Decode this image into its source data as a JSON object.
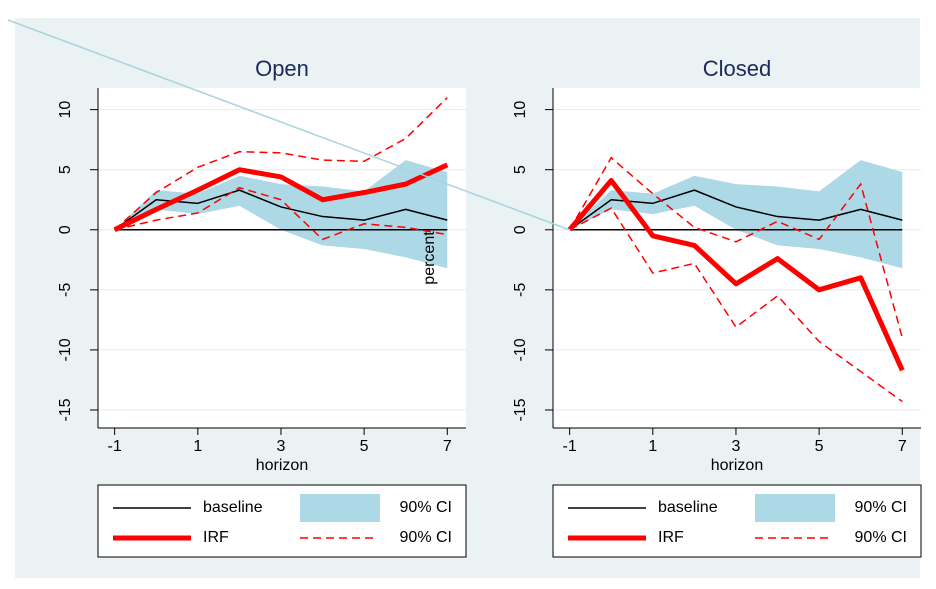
{
  "chart_data": [
    {
      "type": "line",
      "title": "Open",
      "x_label": "horizon",
      "annotation": "percent",
      "x": [
        -1,
        0,
        1,
        2,
        3,
        4,
        5,
        6,
        7
      ],
      "xlim": [
        -1.4,
        7.45
      ],
      "xticks": [
        -1,
        1,
        3,
        5,
        7
      ],
      "ylim": [
        -16.5,
        11.8
      ],
      "yticks": [
        -15,
        -10,
        -5,
        0,
        5,
        10
      ],
      "grid": true,
      "zero_line": true,
      "series": [
        {
          "name": "baseline",
          "color": "#000000",
          "style": "line",
          "values": [
            0,
            2.5,
            2.2,
            3.3,
            1.9,
            1.1,
            0.8,
            1.7,
            0.8
          ]
        },
        {
          "name": "90% CI",
          "color": "#add8e6",
          "style": "band",
          "lower": [
            0,
            1.7,
            1.3,
            2.0,
            0,
            -1.3,
            -1.6,
            -2.3,
            -3.2
          ],
          "upper": [
            0,
            3.3,
            3.0,
            4.5,
            3.8,
            3.6,
            3.2,
            5.8,
            4.8
          ]
        },
        {
          "name": "IRF",
          "color": "#ff0000",
          "style": "thick",
          "values": [
            0,
            1.7,
            3.3,
            5.0,
            4.4,
            2.5,
            3.1,
            3.8,
            5.4
          ]
        },
        {
          "name": "90% CI",
          "color": "#ff0000",
          "style": "dashed",
          "lower": [
            0,
            0.8,
            1.4,
            3.5,
            2.5,
            -0.8,
            0.5,
            0.2,
            -0.4
          ],
          "upper": [
            0,
            3.1,
            5.2,
            6.5,
            6.4,
            5.8,
            5.7,
            7.6,
            11.0
          ]
        }
      ]
    },
    {
      "type": "line",
      "title": "Closed",
      "x_label": "horizon",
      "x": [
        -1,
        0,
        1,
        2,
        3,
        4,
        5,
        6,
        7
      ],
      "xlim": [
        -1.4,
        7.45
      ],
      "xticks": [
        -1,
        1,
        3,
        5,
        7
      ],
      "ylim": [
        -16.5,
        11.8
      ],
      "yticks": [
        -15,
        -10,
        -5,
        0,
        5,
        10
      ],
      "grid": true,
      "zero_line": true,
      "series": [
        {
          "name": "baseline",
          "color": "#000000",
          "style": "line",
          "values": [
            0,
            2.5,
            2.2,
            3.3,
            1.9,
            1.1,
            0.8,
            1.7,
            0.8
          ]
        },
        {
          "name": "90% CI",
          "color": "#add8e6",
          "style": "band",
          "lower": [
            0,
            1.7,
            1.3,
            2.0,
            0,
            -1.3,
            -1.6,
            -2.3,
            -3.2
          ],
          "upper": [
            0,
            3.3,
            3.0,
            4.5,
            3.8,
            3.6,
            3.2,
            5.8,
            4.8
          ]
        },
        {
          "name": "IRF",
          "color": "#ff0000",
          "style": "thick",
          "values": [
            0,
            4.1,
            -0.5,
            -1.3,
            -4.5,
            -2.4,
            -5.0,
            -4.0,
            -11.7
          ]
        },
        {
          "name": "90% CI",
          "color": "#ff0000",
          "style": "dashed",
          "lower": [
            0,
            1.8,
            -3.6,
            -2.8,
            -8.1,
            -5.5,
            -9.3,
            -11.8,
            -14.3
          ],
          "upper": [
            0,
            6.0,
            3.0,
            0.2,
            -1.0,
            0.7,
            -0.8,
            3.8,
            -9.0
          ]
        }
      ]
    }
  ]
}
